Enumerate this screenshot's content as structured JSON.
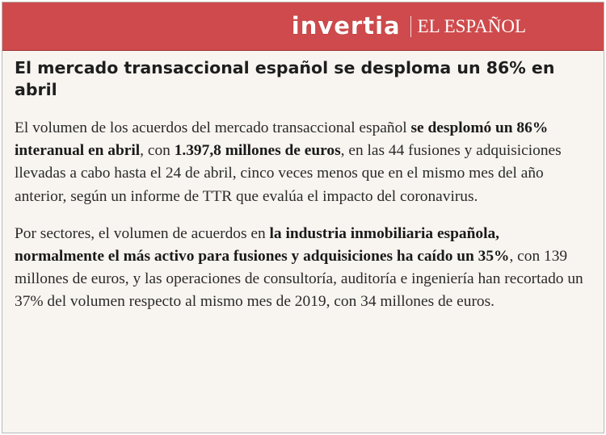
{
  "header": {
    "brand": "invertia",
    "partner_logo": "EL ESPAÑOL"
  },
  "article": {
    "headline": "El mercado transaccional español se desploma un 86% en abril",
    "p1": {
      "t1": "El volumen de los acuerdos del mercado transaccional español ",
      "b1": "se desplomó un 86% interanual en abril",
      "t2": ", con ",
      "b2": "1.397,8 millones de euros",
      "t3": ", en las 44 fusiones y adquisiciones llevadas a cabo hasta el 24 de abril, cinco veces menos que en el mismo mes del año anterior, según un informe de TTR que evalúa el impacto del coronavirus."
    },
    "p2": {
      "t1": "Por sectores, el volumen de acuerdos en ",
      "b1": "la industria inmobiliaria española, normalmente el más activo para fusiones y adquisiciones ha caído un 35%",
      "t2": ", con 139 millones de euros, y las operaciones de consultoría, auditoría e ingeniería han recortado un 37% del volumen respecto al mismo mes de 2019, con 34 millones de euros."
    }
  },
  "colors": {
    "header_bg": "#cf4a4c",
    "page_bg": "#f8f4f0",
    "text": "#2a2a2a"
  }
}
